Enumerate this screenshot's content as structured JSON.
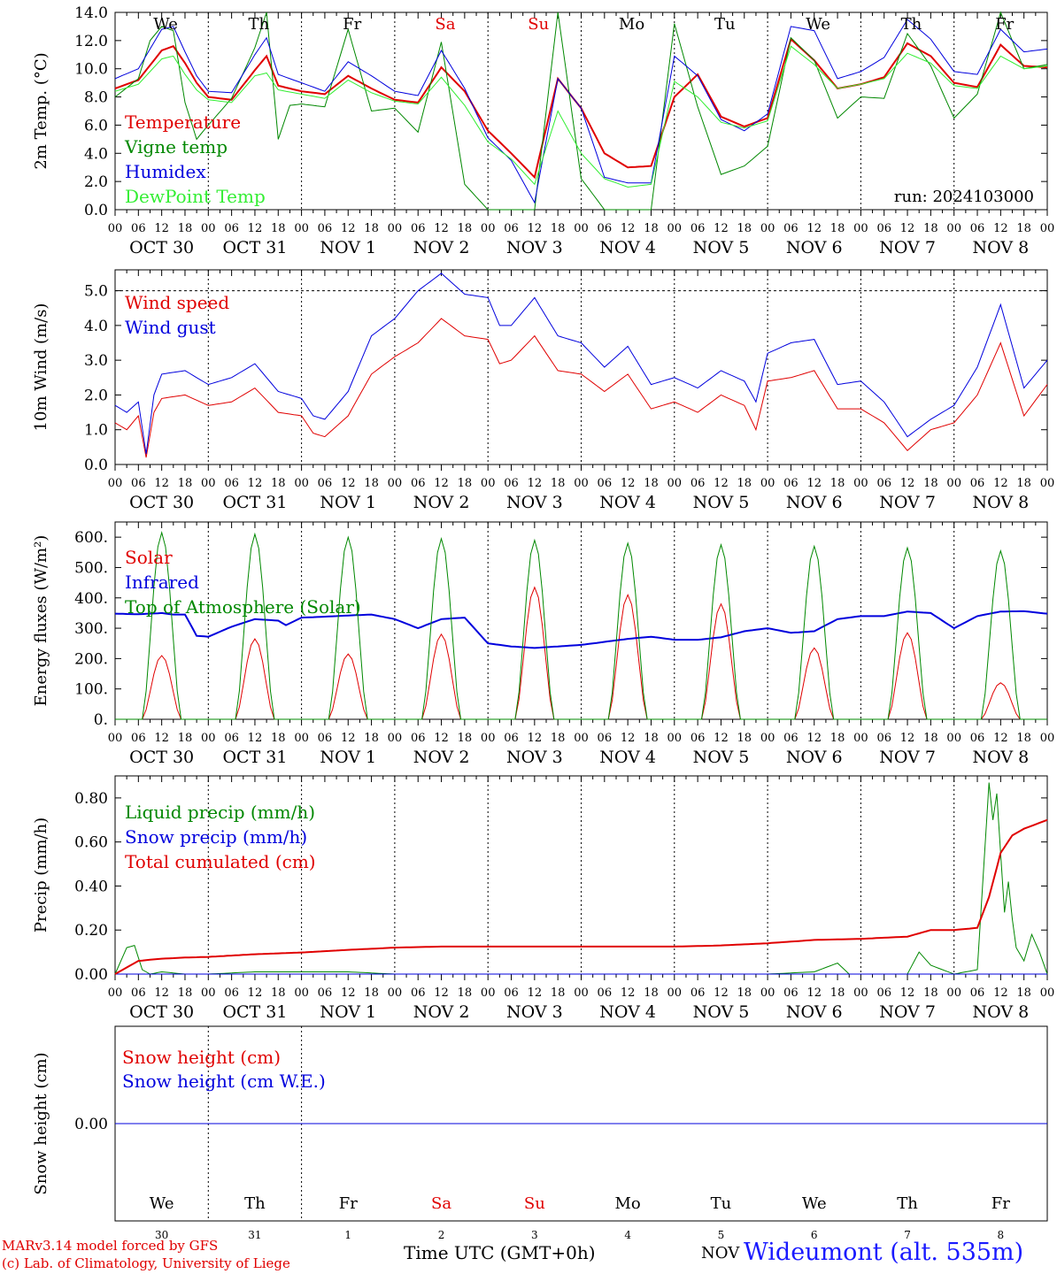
{
  "run_label": "run: 2024103000",
  "days": [
    "OCT 30",
    "OCT 31",
    "NOV  1",
    "NOV  2",
    "NOV  3",
    "NOV  4",
    "NOV  5",
    "NOV  6",
    "NOV  7",
    "NOV  8"
  ],
  "weekdays": [
    "We",
    "Th",
    "Fr",
    "Sa",
    "Su",
    "Mo",
    "Tu",
    "We",
    "Th",
    "Fr"
  ],
  "weekday_colors": [
    "#000000",
    "#000000",
    "#000000",
    "#e00000",
    "#e00000",
    "#000000",
    "#000000",
    "#000000",
    "#000000",
    "#000000"
  ],
  "day_numbers": [
    "30",
    "31",
    "1",
    "2",
    "3",
    "4",
    "5",
    "6",
    "7",
    "8"
  ],
  "hour_ticks": [
    "00",
    "06",
    "12",
    "18"
  ],
  "footer": {
    "credit_line1": "MARv3.14 model forced by GFS",
    "credit_line2": "(c) Lab. of Climatology, University of Liege",
    "time_label": "Time UTC (GMT+0h)",
    "nov_label": "NOV",
    "station": "Wideumont (alt. 535m)"
  },
  "chart_data": [
    {
      "type": "line",
      "panel": "temperature",
      "ylabel": "2m Temp. (°C)",
      "ylim": [
        0,
        14
      ],
      "yticks": [
        0,
        2,
        4,
        6,
        8,
        10,
        12,
        14
      ],
      "ytick_labels": [
        "0.0",
        "2.0",
        "4.0",
        "6.0",
        "8.0",
        "10.0",
        "12.0",
        "14.0"
      ],
      "grid": "vertical dotted at 00 UTC",
      "x_unit": "hours since 2024-10-30 00 UTC",
      "xlim": [
        0,
        240
      ],
      "series": [
        {
          "name": "Temperature",
          "color": "#e00000",
          "width": 2,
          "x": [
            0,
            6,
            12,
            15,
            18,
            21,
            24,
            30,
            36,
            39,
            42,
            48,
            54,
            60,
            66,
            72,
            78,
            84,
            90,
            96,
            102,
            108,
            114,
            120,
            126,
            132,
            138,
            144,
            150,
            156,
            162,
            168,
            174,
            180,
            186,
            192,
            198,
            204,
            210,
            216,
            222,
            228,
            234,
            240
          ],
          "y": [
            8.6,
            9.2,
            11.3,
            11.6,
            10.4,
            9.0,
            8.0,
            7.8,
            9.9,
            10.9,
            8.8,
            8.4,
            8.2,
            9.5,
            8.6,
            7.8,
            7.6,
            10.1,
            8.4,
            5.6,
            4.0,
            2.3,
            9.3,
            7.2,
            4.0,
            3.0,
            3.1,
            8.0,
            9.6,
            6.6,
            5.9,
            6.5,
            12.1,
            10.6,
            8.6,
            8.9,
            9.4,
            11.8,
            10.9,
            9.0,
            8.7,
            11.7,
            10.2,
            10.1
          ]
        },
        {
          "name": "Vigne temp",
          "color": "#008800",
          "width": 1,
          "x": [
            0,
            6,
            9,
            12,
            15,
            18,
            21,
            24,
            30,
            36,
            39,
            42,
            45,
            48,
            54,
            60,
            66,
            72,
            78,
            84,
            90,
            96,
            102,
            108,
            114,
            120,
            126,
            132,
            138,
            144,
            150,
            156,
            162,
            168,
            174,
            180,
            186,
            192,
            198,
            204,
            210,
            216,
            222,
            228,
            234,
            240
          ],
          "y": [
            8.0,
            9.3,
            12.0,
            13.0,
            12.7,
            7.6,
            5.0,
            6.0,
            7.9,
            11.5,
            14.0,
            5.0,
            7.4,
            7.5,
            7.3,
            12.8,
            7.0,
            7.2,
            5.5,
            11.9,
            1.8,
            0.0,
            0.0,
            0.0,
            14.0,
            2.2,
            0.0,
            0.0,
            0.0,
            13.2,
            7.3,
            2.5,
            3.1,
            4.5,
            12.2,
            10.6,
            6.5,
            8.0,
            7.9,
            12.5,
            10.2,
            6.5,
            8.2,
            14.0,
            10.0,
            10.3
          ]
        },
        {
          "name": "Humidex",
          "color": "#0000dd",
          "width": 1,
          "x": [
            0,
            6,
            12,
            15,
            18,
            21,
            24,
            30,
            36,
            39,
            42,
            48,
            54,
            60,
            66,
            72,
            78,
            84,
            90,
            96,
            102,
            108,
            114,
            120,
            126,
            132,
            138,
            144,
            150,
            156,
            162,
            168,
            174,
            180,
            186,
            192,
            198,
            204,
            210,
            216,
            222,
            228,
            234,
            240
          ],
          "y": [
            9.3,
            10.0,
            12.8,
            13.0,
            11.2,
            9.5,
            8.4,
            8.3,
            11.0,
            12.2,
            9.6,
            9.0,
            8.4,
            10.5,
            9.5,
            8.4,
            8.1,
            11.3,
            8.6,
            5.1,
            3.5,
            0.5,
            9.3,
            7.2,
            2.3,
            1.9,
            1.9,
            10.9,
            9.5,
            6.4,
            5.6,
            6.8,
            13.0,
            12.7,
            9.3,
            9.8,
            10.8,
            13.5,
            12.1,
            9.8,
            9.6,
            12.8,
            11.2,
            11.4
          ]
        },
        {
          "name": "DewPoint Temp",
          "color": "#33ee33",
          "width": 1,
          "x": [
            0,
            6,
            12,
            15,
            18,
            21,
            24,
            30,
            36,
            39,
            42,
            48,
            54,
            60,
            66,
            72,
            78,
            84,
            90,
            96,
            102,
            108,
            114,
            120,
            126,
            132,
            138,
            144,
            150,
            156,
            162,
            168,
            174,
            180,
            186,
            192,
            198,
            204,
            210,
            216,
            222,
            228,
            234,
            240
          ],
          "y": [
            8.4,
            8.9,
            10.7,
            10.9,
            9.6,
            8.5,
            7.8,
            7.6,
            9.5,
            9.7,
            8.5,
            8.2,
            7.9,
            9.2,
            8.3,
            7.7,
            7.5,
            9.4,
            7.4,
            4.8,
            3.6,
            1.8,
            7.0,
            4.0,
            2.2,
            1.6,
            1.8,
            9.1,
            8.0,
            6.2,
            5.8,
            6.3,
            11.6,
            10.3,
            8.6,
            8.9,
            9.3,
            11.1,
            10.4,
            8.8,
            8.6,
            10.9,
            10.0,
            10.2
          ]
        }
      ]
    },
    {
      "type": "line",
      "panel": "wind",
      "ylabel": "10m Wind (m/s)",
      "ylim": [
        0,
        5.6
      ],
      "yticks": [
        0,
        1,
        2,
        3,
        4,
        5
      ],
      "ytick_labels": [
        "0.0",
        "1.0",
        "2.0",
        "3.0",
        "4.0",
        "5.0"
      ],
      "hline": 5.0,
      "x_unit": "hours since 2024-10-30 00 UTC",
      "xlim": [
        0,
        240
      ],
      "series": [
        {
          "name": "Wind speed",
          "color": "#e00000",
          "width": 1,
          "x": [
            0,
            3,
            6,
            8,
            10,
            12,
            18,
            24,
            30,
            36,
            42,
            48,
            51,
            54,
            60,
            66,
            72,
            78,
            84,
            90,
            96,
            99,
            102,
            108,
            114,
            120,
            126,
            132,
            138,
            144,
            150,
            156,
            162,
            165,
            168,
            174,
            180,
            186,
            192,
            198,
            204,
            210,
            216,
            222,
            228,
            234,
            240
          ],
          "y": [
            1.2,
            1.0,
            1.4,
            0.2,
            1.5,
            1.9,
            2.0,
            1.7,
            1.8,
            2.2,
            1.5,
            1.4,
            0.9,
            0.8,
            1.4,
            2.6,
            3.1,
            3.5,
            4.2,
            3.7,
            3.6,
            2.9,
            3.0,
            3.7,
            2.7,
            2.6,
            2.1,
            2.6,
            1.6,
            1.8,
            1.5,
            2.0,
            1.7,
            1.0,
            2.4,
            2.5,
            2.7,
            1.6,
            1.6,
            1.2,
            0.4,
            1.0,
            1.2,
            2.0,
            3.5,
            1.4,
            2.3
          ]
        },
        {
          "name": "Wind gust",
          "color": "#0000dd",
          "width": 1,
          "x": [
            0,
            3,
            6,
            8,
            10,
            12,
            18,
            24,
            30,
            36,
            42,
            48,
            51,
            54,
            60,
            66,
            72,
            78,
            84,
            90,
            96,
            99,
            102,
            108,
            114,
            120,
            126,
            132,
            138,
            144,
            150,
            156,
            162,
            165,
            168,
            174,
            180,
            186,
            192,
            198,
            204,
            210,
            216,
            222,
            228,
            234,
            240
          ],
          "y": [
            1.7,
            1.5,
            1.8,
            0.3,
            2.0,
            2.6,
            2.7,
            2.3,
            2.5,
            2.9,
            2.1,
            1.9,
            1.4,
            1.3,
            2.1,
            3.7,
            4.2,
            5.0,
            5.5,
            4.9,
            4.8,
            4.0,
            4.0,
            4.8,
            3.7,
            3.5,
            2.8,
            3.4,
            2.3,
            2.5,
            2.2,
            2.7,
            2.4,
            1.8,
            3.2,
            3.5,
            3.6,
            2.3,
            2.4,
            1.8,
            0.8,
            1.3,
            1.7,
            2.8,
            4.6,
            2.2,
            3.0
          ]
        }
      ]
    },
    {
      "type": "line",
      "panel": "energy",
      "ylabel": "Energy fluxes (W/m²)",
      "ylim": [
        0,
        650
      ],
      "yticks": [
        0,
        100,
        200,
        300,
        400,
        500,
        600
      ],
      "ytick_labels": [
        "0.",
        "100.",
        "200.",
        "300.",
        "400.",
        "500.",
        "600."
      ],
      "x_unit": "hours since 2024-10-30 00 UTC",
      "xlim": [
        0,
        240
      ],
      "peaks_hour_of_day": 12,
      "day_window_hours": [
        7,
        17
      ],
      "series": [
        {
          "name": "Solar",
          "color": "#e00000",
          "width": 1,
          "daily_peaks": [
            210,
            265,
            215,
            280,
            435,
            410,
            380,
            235,
            285,
            120
          ]
        },
        {
          "name": "Infrared",
          "color": "#0000dd",
          "width": 2,
          "x": [
            0,
            6,
            12,
            15,
            18,
            21,
            24,
            30,
            36,
            42,
            44,
            48,
            54,
            60,
            66,
            72,
            78,
            84,
            90,
            96,
            102,
            108,
            114,
            120,
            126,
            132,
            138,
            144,
            150,
            156,
            162,
            168,
            174,
            180,
            186,
            192,
            198,
            204,
            210,
            216,
            222,
            228,
            234,
            240
          ],
          "y": [
            348,
            346,
            350,
            345,
            345,
            275,
            272,
            305,
            330,
            325,
            310,
            335,
            338,
            342,
            345,
            330,
            300,
            330,
            335,
            250,
            240,
            235,
            240,
            245,
            255,
            265,
            272,
            262,
            262,
            270,
            290,
            300,
            285,
            290,
            330,
            340,
            340,
            355,
            350,
            300,
            340,
            355,
            356,
            348
          ]
        },
        {
          "name": "Top of Atmosphere (Solar)",
          "color": "#008800",
          "width": 1,
          "daily_peaks": [
            615,
            610,
            600,
            595,
            590,
            580,
            575,
            570,
            565,
            555
          ]
        }
      ]
    },
    {
      "type": "line",
      "panel": "precip",
      "ylabel": "Precip (mm/h)",
      "ylim": [
        0,
        0.9
      ],
      "yticks": [
        0,
        0.2,
        0.4,
        0.6,
        0.8
      ],
      "ytick_labels": [
        "0.00",
        "0.20",
        "0.40",
        "0.60",
        "0.80"
      ],
      "x_unit": "hours since 2024-10-30 00 UTC",
      "xlim": [
        0,
        240
      ],
      "series": [
        {
          "name": "Liquid precip (mm/h)",
          "color": "#008800",
          "width": 1,
          "x": [
            0,
            3,
            5,
            7,
            9,
            12,
            18,
            24,
            36,
            48,
            60,
            72,
            96,
            120,
            144,
            168,
            180,
            186,
            189,
            192,
            204,
            207,
            210,
            216,
            222,
            225,
            226,
            227,
            228,
            229,
            230,
            231,
            232,
            234,
            236,
            238,
            240
          ],
          "y": [
            0,
            0.12,
            0.13,
            0.02,
            0,
            0.01,
            0,
            0,
            0.01,
            0.01,
            0.01,
            0,
            0,
            0,
            0,
            0,
            0.01,
            0.05,
            0,
            0,
            0,
            0.1,
            0.04,
            0,
            0.02,
            0.87,
            0.7,
            0.82,
            0.55,
            0.28,
            0.42,
            0.25,
            0.12,
            0.06,
            0.18,
            0.1,
            0.0
          ]
        },
        {
          "name": "Snow precip (mm/h)",
          "color": "#0000dd",
          "width": 1,
          "x": [
            0,
            240
          ],
          "y": [
            0,
            0
          ]
        },
        {
          "name": "Total cumulated (cm)",
          "color": "#e00000",
          "width": 2,
          "x": [
            0,
            3,
            6,
            9,
            12,
            18,
            24,
            36,
            48,
            60,
            72,
            84,
            96,
            120,
            144,
            156,
            168,
            180,
            192,
            204,
            210,
            216,
            222,
            225,
            228,
            231,
            234,
            240
          ],
          "y": [
            0,
            0.03,
            0.06,
            0.065,
            0.07,
            0.075,
            0.078,
            0.09,
            0.098,
            0.11,
            0.12,
            0.125,
            0.125,
            0.125,
            0.125,
            0.13,
            0.14,
            0.155,
            0.16,
            0.17,
            0.2,
            0.2,
            0.21,
            0.35,
            0.55,
            0.63,
            0.66,
            0.7
          ]
        }
      ]
    },
    {
      "type": "line",
      "panel": "snow",
      "ylabel": "Snow height (cm)",
      "ylim": [
        -1,
        1
      ],
      "yticks": [
        0
      ],
      "ytick_labels": [
        "0.00"
      ],
      "x_unit": "hours since 2024-10-30 00 UTC",
      "xlim": [
        0,
        240
      ],
      "series": [
        {
          "name": "Snow height (cm)",
          "color": "#e00000",
          "width": 1,
          "x": [
            0,
            240
          ],
          "y": [
            0,
            0
          ]
        },
        {
          "name": "Snow height (cm W.E.)",
          "color": "#0000dd",
          "width": 1,
          "x": [
            0,
            240
          ],
          "y": [
            0,
            0
          ]
        }
      ]
    }
  ]
}
